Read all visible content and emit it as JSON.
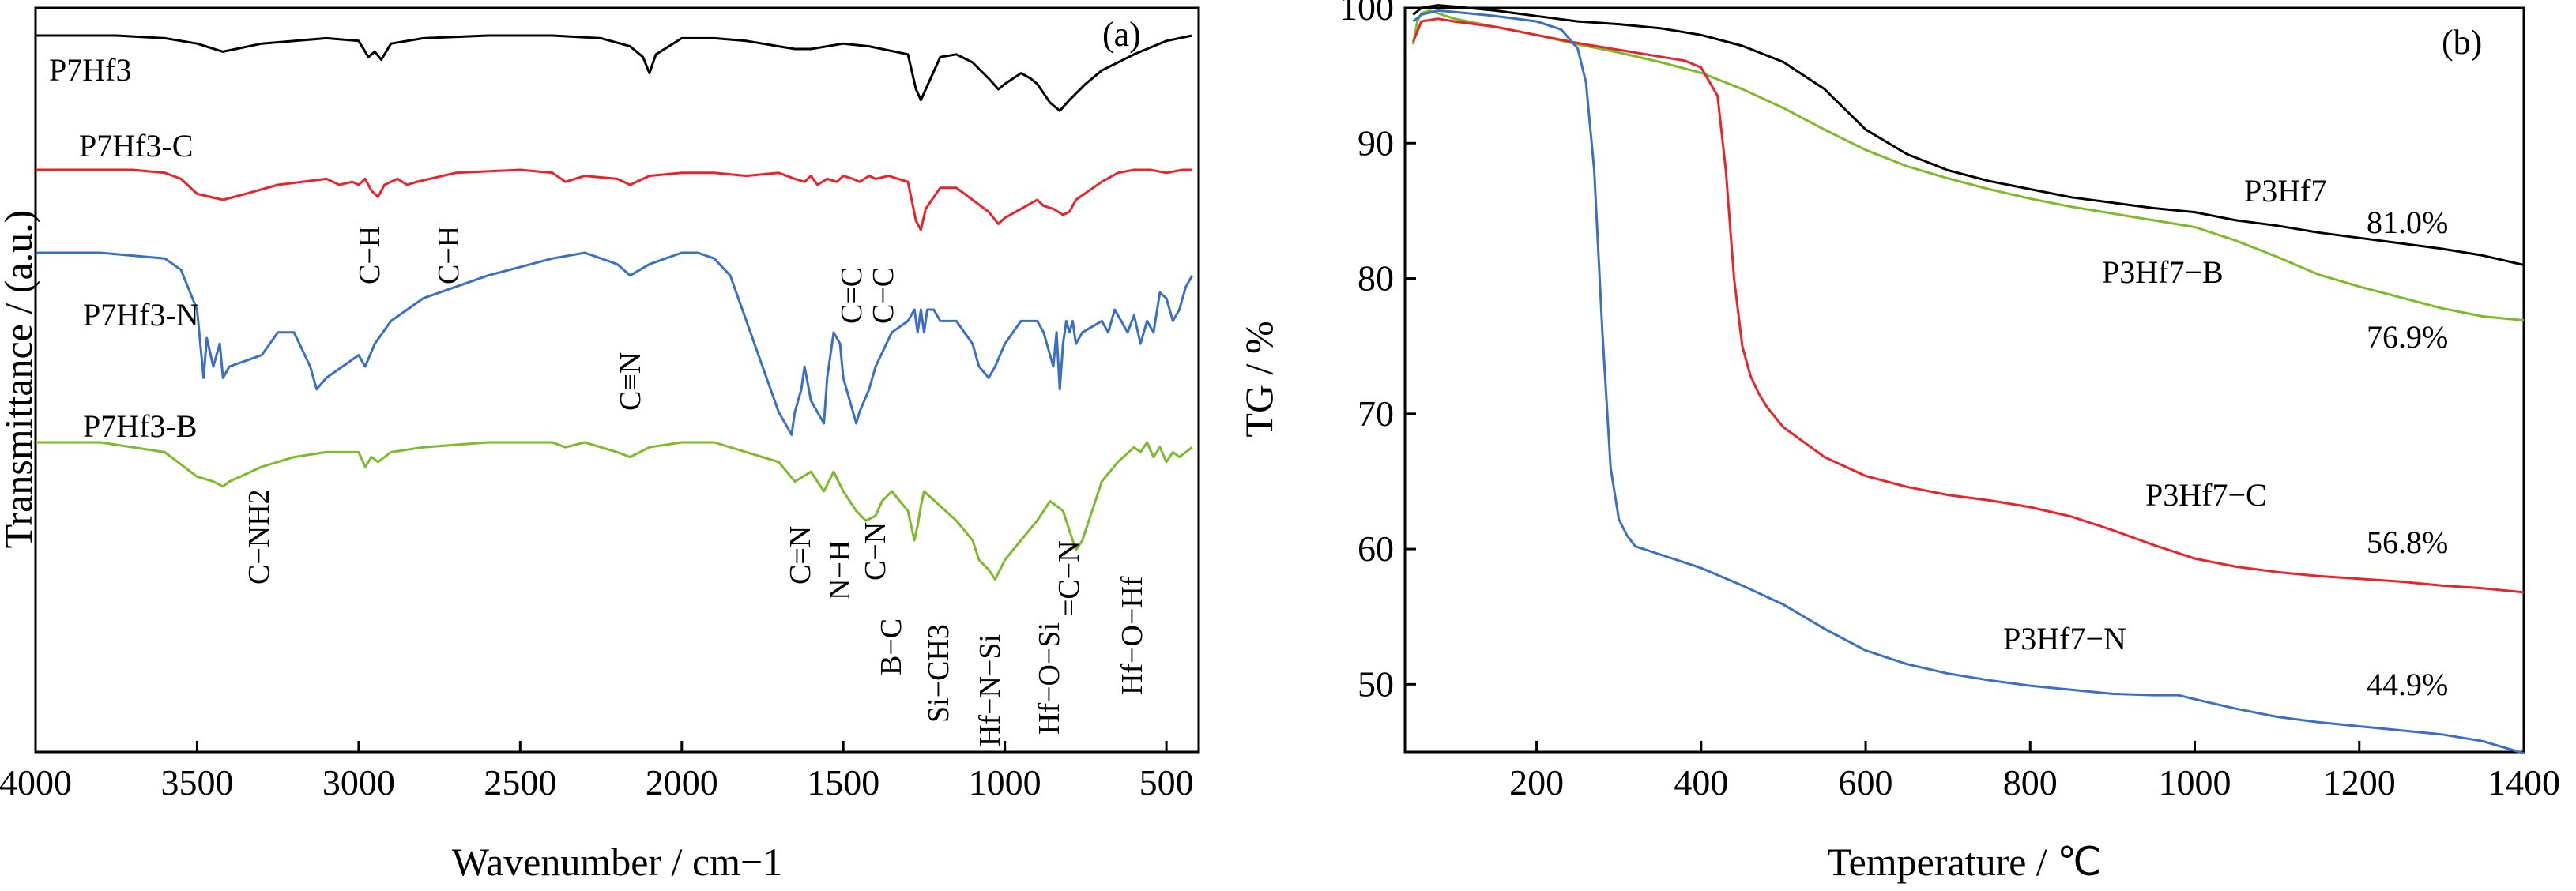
{
  "chart_data": [
    {
      "panel_label": "(a)",
      "type": "line",
      "xlabel": "Wavenumber / cm−1",
      "ylabel": "Transmittance / (a.u.)",
      "xlim": [
        4000,
        400
      ],
      "x_ticks": [
        4000,
        3500,
        3000,
        2500,
        2000,
        1500,
        1000,
        500
      ],
      "x_tick_labels": [
        "4000",
        "3500",
        "3000",
        "2500",
        "2000",
        "1500",
        "1000",
        "500"
      ],
      "y_ticks_shown": false,
      "colors": {
        "P7Hf3": "#000000",
        "P7Hf3-C": "#e8232a",
        "P7Hf3-N": "#3a6fc4",
        "P7Hf3-B": "#7dba2a"
      },
      "series": [
        {
          "name": "P7Hf3",
          "x": [
            4000,
            3750,
            3600,
            3500,
            3420,
            3300,
            3100,
            3000,
            2970,
            2950,
            2930,
            2900,
            2800,
            2600,
            2400,
            2250,
            2160,
            2120,
            2100,
            2080,
            2000,
            1900,
            1800,
            1700,
            1650,
            1600,
            1500,
            1420,
            1300,
            1275,
            1260,
            1245,
            1200,
            1150,
            1100,
            1050,
            1020,
            1000,
            950,
            920,
            900,
            860,
            830,
            800,
            750,
            700,
            600,
            500,
            460,
            420
          ],
          "y": [
            100,
            100,
            99,
            97,
            94,
            97,
            99,
            98,
            92,
            94,
            91,
            97,
            99,
            100,
            100,
            99,
            96,
            92,
            86,
            93,
            99,
            99,
            98,
            96,
            95,
            95,
            97,
            96,
            93,
            80,
            76,
            80,
            92,
            93,
            90,
            84,
            80,
            82,
            86,
            84,
            82,
            75,
            72,
            76,
            82,
            87,
            93,
            98,
            99,
            100
          ]
        },
        {
          "name": "P7Hf3-C",
          "x": [
            4000,
            3800,
            3700,
            3600,
            3550,
            3500,
            3420,
            3350,
            3250,
            3100,
            3060,
            3020,
            3000,
            2980,
            2960,
            2940,
            2920,
            2880,
            2850,
            2820,
            2700,
            2500,
            2400,
            2360,
            2300,
            2200,
            2160,
            2100,
            2000,
            1900,
            1800,
            1700,
            1650,
            1620,
            1600,
            1580,
            1550,
            1520,
            1500,
            1470,
            1450,
            1420,
            1400,
            1360,
            1300,
            1275,
            1260,
            1245,
            1200,
            1150,
            1100,
            1050,
            1020,
            1000,
            950,
            900,
            880,
            850,
            820,
            800,
            780,
            700,
            650,
            600,
            550,
            500,
            450,
            420
          ],
          "y": [
            100,
            100,
            100,
            99,
            97,
            92,
            90,
            92,
            95,
            97,
            95,
            96,
            95,
            97,
            93,
            91,
            95,
            97,
            95,
            96,
            99,
            100,
            99,
            96,
            98,
            97,
            95,
            98,
            99,
            99,
            98,
            99,
            97,
            96,
            98,
            95,
            97,
            96,
            98,
            97,
            96,
            98,
            97,
            98,
            96,
            83,
            80,
            87,
            94,
            94,
            90,
            86,
            82,
            84,
            87,
            90,
            88,
            87,
            85,
            86,
            90,
            96,
            99,
            100,
            100,
            99,
            100,
            100
          ]
        },
        {
          "name": "P7Hf3-N",
          "x": [
            4000,
            3800,
            3600,
            3550,
            3500,
            3480,
            3470,
            3450,
            3430,
            3420,
            3400,
            3300,
            3250,
            3200,
            3150,
            3130,
            3100,
            3000,
            2980,
            2950,
            2900,
            2800,
            2600,
            2400,
            2300,
            2250,
            2200,
            2160,
            2100,
            2000,
            1950,
            1900,
            1850,
            1800,
            1750,
            1700,
            1680,
            1660,
            1650,
            1630,
            1620,
            1600,
            1580,
            1560,
            1550,
            1530,
            1510,
            1500,
            1480,
            1460,
            1450,
            1420,
            1400,
            1350,
            1300,
            1280,
            1270,
            1260,
            1250,
            1240,
            1220,
            1200,
            1150,
            1100,
            1080,
            1050,
            1030,
            1000,
            950,
            900,
            880,
            860,
            850,
            840,
            830,
            820,
            810,
            800,
            790,
            780,
            760,
            700,
            680,
            660,
            640,
            620,
            600,
            580,
            560,
            540,
            520,
            500,
            480,
            460,
            440,
            420
          ],
          "y": [
            100,
            100,
            99,
            97,
            90,
            78,
            85,
            80,
            84,
            78,
            80,
            82,
            86,
            86,
            80,
            76,
            78,
            82,
            80,
            84,
            88,
            92,
            96,
            99,
            100,
            99,
            98,
            96,
            98,
            100,
            100,
            99,
            96,
            88,
            80,
            72,
            70,
            68,
            72,
            76,
            80,
            74,
            72,
            70,
            78,
            86,
            84,
            78,
            74,
            70,
            72,
            76,
            80,
            86,
            88,
            90,
            86,
            90,
            86,
            90,
            90,
            88,
            88,
            84,
            80,
            78,
            80,
            84,
            88,
            88,
            86,
            82,
            80,
            86,
            76,
            84,
            88,
            86,
            88,
            84,
            86,
            88,
            86,
            90,
            88,
            86,
            89,
            84,
            88,
            86,
            93,
            92,
            88,
            90,
            94,
            96
          ]
        },
        {
          "name": "P7Hf3-B",
          "x": [
            4000,
            3800,
            3700,
            3600,
            3500,
            3450,
            3420,
            3400,
            3300,
            3200,
            3100,
            3000,
            2980,
            2960,
            2940,
            2900,
            2800,
            2600,
            2400,
            2360,
            2300,
            2200,
            2160,
            2100,
            2000,
            1900,
            1800,
            1700,
            1650,
            1600,
            1560,
            1530,
            1500,
            1460,
            1430,
            1400,
            1380,
            1350,
            1300,
            1280,
            1270,
            1260,
            1250,
            1200,
            1150,
            1100,
            1080,
            1050,
            1030,
            1000,
            950,
            900,
            880,
            860,
            820,
            800,
            780,
            760,
            740,
            720,
            700,
            650,
            600,
            580,
            560,
            540,
            520,
            500,
            480,
            460,
            440,
            420
          ],
          "y": [
            100,
            100,
            99,
            98,
            93,
            92,
            91,
            92,
            95,
            97,
            98,
            98,
            95,
            97,
            96,
            98,
            99,
            100,
            100,
            99,
            100,
            98,
            97,
            99,
            100,
            100,
            98,
            96,
            92,
            94,
            90,
            94,
            90,
            86,
            84,
            85,
            88,
            90,
            86,
            80,
            83,
            87,
            90,
            87,
            84,
            80,
            76,
            74,
            72,
            76,
            80,
            84,
            86,
            88,
            86,
            82,
            78,
            80,
            84,
            88,
            92,
            96,
            99,
            98,
            100,
            97,
            99,
            96,
            98,
            97,
            98,
            99
          ]
        }
      ],
      "annotations": [
        "C−H",
        "C−H",
        "C≡N",
        "C=C",
        "C−C",
        "C−NH2",
        "C=N",
        "N−H",
        "C−N",
        "B−C",
        "Si−CH3",
        "Hf−N−Si",
        "Hf−O−Si",
        "=C−N",
        "Hf−O−Hf"
      ]
    },
    {
      "panel_label": "(b)",
      "type": "line",
      "xlabel": "Temperature / ℃",
      "ylabel": "TG / %",
      "xlim": [
        40,
        1400
      ],
      "ylim": [
        45,
        100
      ],
      "x_ticks": [
        200,
        400,
        600,
        800,
        1000,
        1200,
        1400
      ],
      "y_ticks": [
        50,
        60,
        70,
        80,
        90,
        100
      ],
      "colors": {
        "P3Hf7": "#000000",
        "P3Hf7−B": "#7dba2a",
        "P3Hf7−C": "#e8232a",
        "P3Hf7−N": "#3a6fc4"
      },
      "series": [
        {
          "name": "P3Hf7",
          "label_value": "81.0%",
          "x": [
            50,
            60,
            80,
            100,
            150,
            200,
            250,
            300,
            350,
            400,
            450,
            500,
            550,
            600,
            650,
            700,
            750,
            800,
            850,
            900,
            950,
            1000,
            1050,
            1100,
            1150,
            1200,
            1250,
            1300,
            1350,
            1400
          ],
          "y": [
            99.5,
            100,
            100.2,
            100.1,
            99.8,
            99.4,
            99,
            98.8,
            98.5,
            98,
            97.2,
            96,
            94,
            91,
            89.2,
            88,
            87.2,
            86.6,
            86,
            85.6,
            85.2,
            84.9,
            84.3,
            83.9,
            83.4,
            83,
            82.6,
            82.2,
            81.7,
            81
          ]
        },
        {
          "name": "P3Hf7−B",
          "label_value": "76.9%",
          "x": [
            50,
            55,
            60,
            70,
            100,
            150,
            200,
            250,
            300,
            350,
            400,
            450,
            500,
            550,
            600,
            650,
            700,
            750,
            800,
            850,
            900,
            950,
            1000,
            1050,
            1100,
            1150,
            1200,
            1250,
            1300,
            1350,
            1400
          ],
          "y": [
            97.3,
            99,
            99.6,
            99.8,
            99.2,
            98.6,
            98,
            97.3,
            96.7,
            96,
            95.2,
            94,
            92.6,
            91,
            89.5,
            88.3,
            87.4,
            86.6,
            85.9,
            85.3,
            84.8,
            84.3,
            83.8,
            82.8,
            81.6,
            80.3,
            79.4,
            78.6,
            77.8,
            77.2,
            76.9
          ]
        },
        {
          "name": "P3Hf7−C",
          "label_value": "56.8%",
          "x": [
            50,
            60,
            80,
            100,
            150,
            200,
            250,
            300,
            350,
            380,
            400,
            420,
            430,
            440,
            450,
            460,
            470,
            480,
            500,
            550,
            600,
            650,
            700,
            750,
            800,
            850,
            900,
            950,
            1000,
            1050,
            1100,
            1150,
            1200,
            1250,
            1300,
            1350,
            1400
          ],
          "y": [
            97.5,
            99,
            99.2,
            99,
            98.6,
            98,
            97.4,
            96.9,
            96.4,
            96.1,
            95.6,
            93.5,
            88,
            80,
            75,
            72.8,
            71.5,
            70.5,
            69,
            66.8,
            65.4,
            64.6,
            64,
            63.6,
            63.1,
            62.4,
            61.4,
            60.3,
            59.3,
            58.7,
            58.3,
            58,
            57.8,
            57.6,
            57.3,
            57.1,
            56.8
          ]
        },
        {
          "name": "P3Hf7−N",
          "label_value": "44.9%",
          "x": [
            50,
            60,
            80,
            100,
            150,
            200,
            230,
            250,
            260,
            270,
            280,
            290,
            300,
            310,
            320,
            340,
            400,
            450,
            500,
            550,
            600,
            650,
            700,
            750,
            800,
            850,
            900,
            950,
            980,
            1000,
            1050,
            1100,
            1150,
            1200,
            1250,
            1300,
            1350,
            1400
          ],
          "y": [
            99,
            99.5,
            99.8,
            99.7,
            99.4,
            99,
            98.4,
            97,
            94.5,
            88,
            76,
            66,
            62.2,
            61,
            60.2,
            59.8,
            58.6,
            57.3,
            55.9,
            54.1,
            52.5,
            51.5,
            50.8,
            50.3,
            49.9,
            49.6,
            49.3,
            49.2,
            49.2,
            48.9,
            48.2,
            47.6,
            47.2,
            46.9,
            46.6,
            46.3,
            45.8,
            44.9
          ]
        }
      ]
    }
  ]
}
